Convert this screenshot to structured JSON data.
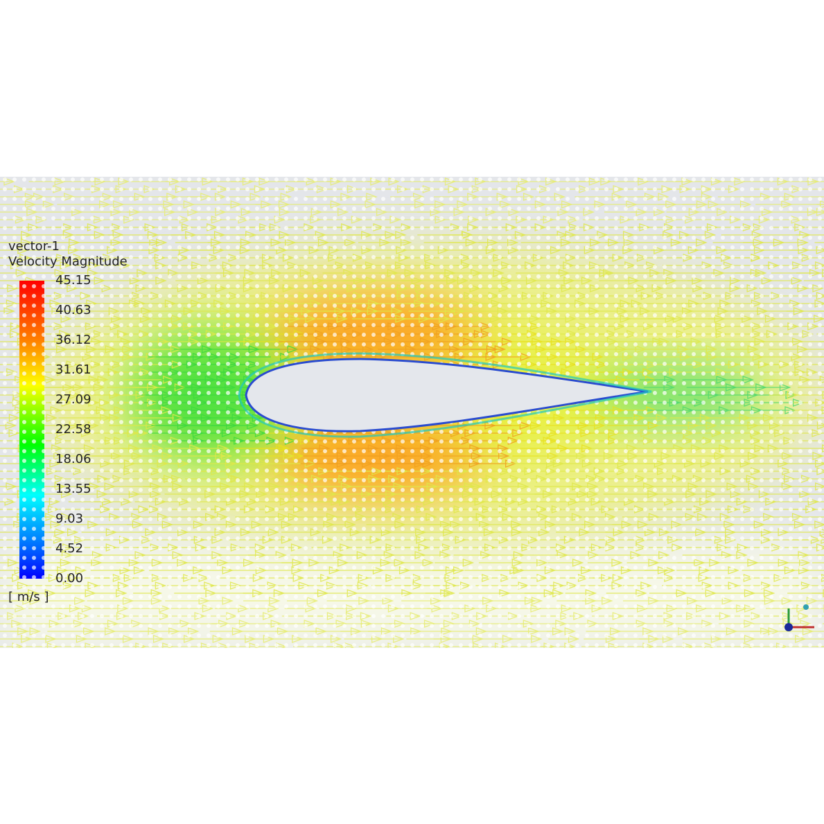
{
  "legend": {
    "title": "vector-1",
    "subtitle": "Velocity Magnitude",
    "ticks": [
      "45.15",
      "40.63",
      "36.12",
      "31.61",
      "27.09",
      "22.58",
      "18.06",
      "13.55",
      "9.03",
      "4.52",
      "0.00"
    ],
    "unit": "[ m/s ]"
  }
}
